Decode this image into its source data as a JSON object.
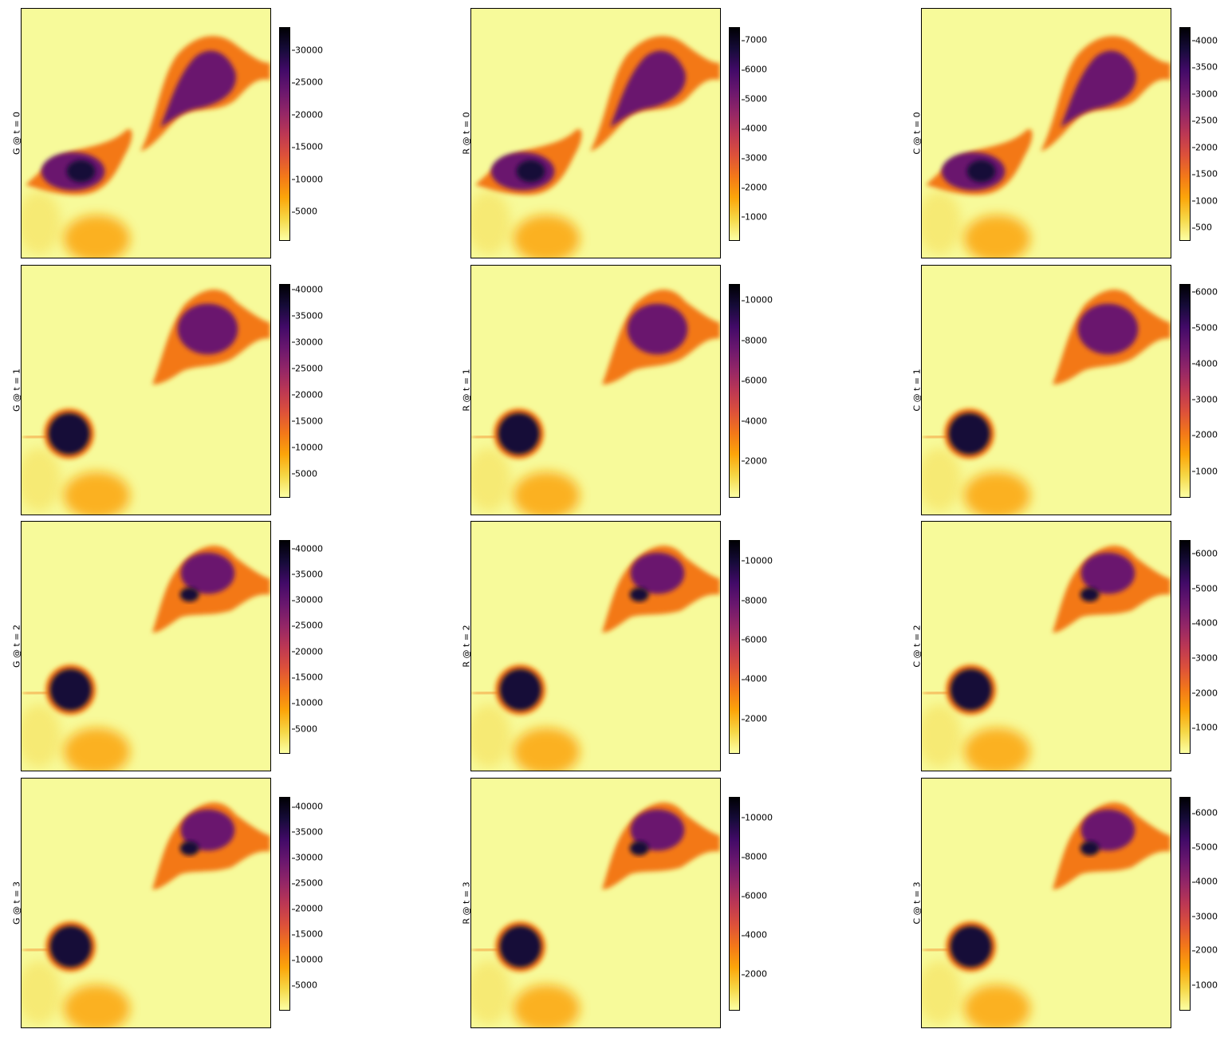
{
  "colormap": [
    "#fcffa4",
    "#f6d746",
    "#fca50a",
    "#f37819",
    "#dd513a",
    "#bc3754",
    "#932667",
    "#6a176e",
    "#420a68",
    "#160b39",
    "#000004"
  ],
  "panels": [
    {
      "row": 0,
      "col": 0,
      "label": "G @ t = 0",
      "ticks": [
        "30000",
        "25000",
        "20000",
        "15000",
        "10000",
        "5000"
      ],
      "tick_fracs": [
        0.107,
        0.258,
        0.41,
        0.561,
        0.712,
        0.863
      ],
      "scale": 1.0
    },
    {
      "row": 0,
      "col": 1,
      "label": "R @ t = 0",
      "ticks": [
        "7000",
        "6000",
        "5000",
        "4000",
        "3000",
        "2000",
        "1000"
      ],
      "tick_fracs": [
        0.06,
        0.198,
        0.336,
        0.474,
        0.612,
        0.75,
        0.888
      ],
      "scale": 0.95
    },
    {
      "row": 0,
      "col": 2,
      "label": "C @ t = 0",
      "ticks": [
        "4000",
        "3500",
        "3000",
        "2500",
        "2000",
        "1500",
        "1000",
        "500"
      ],
      "tick_fracs": [
        0.063,
        0.188,
        0.313,
        0.438,
        0.563,
        0.687,
        0.812,
        0.937
      ],
      "scale": 0.9
    },
    {
      "row": 1,
      "col": 0,
      "label": "G @ t = 1",
      "ticks": [
        "40000",
        "35000",
        "30000",
        "25000",
        "20000",
        "15000",
        "10000",
        "5000"
      ],
      "tick_fracs": [
        0.026,
        0.149,
        0.272,
        0.395,
        0.518,
        0.641,
        0.764,
        0.888
      ],
      "scale": 1.0
    },
    {
      "row": 1,
      "col": 1,
      "label": "R @ t = 1",
      "ticks": [
        "10000",
        "8000",
        "6000",
        "4000",
        "2000"
      ],
      "tick_fracs": [
        0.075,
        0.264,
        0.452,
        0.64,
        0.828
      ],
      "scale": 0.85
    },
    {
      "row": 1,
      "col": 2,
      "label": "C @ t = 1",
      "ticks": [
        "6000",
        "5000",
        "4000",
        "3000",
        "2000",
        "1000"
      ],
      "tick_fracs": [
        0.037,
        0.205,
        0.372,
        0.54,
        0.707,
        0.875
      ],
      "scale": 0.9
    },
    {
      "row": 2,
      "col": 0,
      "label": "G @ t = 2",
      "ticks": [
        "40000",
        "35000",
        "30000",
        "25000",
        "20000",
        "15000",
        "10000",
        "5000"
      ],
      "tick_fracs": [
        0.04,
        0.16,
        0.281,
        0.401,
        0.522,
        0.642,
        0.763,
        0.884
      ],
      "scale": 1.0
    },
    {
      "row": 2,
      "col": 1,
      "label": "R @ t = 2",
      "ticks": [
        "10000",
        "8000",
        "6000",
        "4000",
        "2000"
      ],
      "tick_fracs": [
        0.097,
        0.282,
        0.466,
        0.651,
        0.836
      ],
      "scale": 0.85
    },
    {
      "row": 2,
      "col": 2,
      "label": "C @ t = 2",
      "ticks": [
        "6000",
        "5000",
        "4000",
        "3000",
        "2000",
        "1000"
      ],
      "tick_fracs": [
        0.063,
        0.226,
        0.389,
        0.552,
        0.715,
        0.878
      ],
      "scale": 0.9
    },
    {
      "row": 3,
      "col": 0,
      "label": "G @ t = 3",
      "ticks": [
        "40000",
        "35000",
        "30000",
        "25000",
        "20000",
        "15000",
        "10000",
        "5000"
      ],
      "tick_fracs": [
        0.045,
        0.164,
        0.284,
        0.403,
        0.523,
        0.643,
        0.762,
        0.882
      ],
      "scale": 1.0
    },
    {
      "row": 3,
      "col": 1,
      "label": "R @ t = 3",
      "ticks": [
        "10000",
        "8000",
        "6000",
        "4000",
        "2000"
      ],
      "tick_fracs": [
        0.097,
        0.28,
        0.463,
        0.646,
        0.829
      ],
      "scale": 0.85
    },
    {
      "row": 3,
      "col": 2,
      "label": "C @ t = 3",
      "ticks": [
        "6000",
        "5000",
        "4000",
        "3000",
        "2000",
        "1000"
      ],
      "tick_fracs": [
        0.075,
        0.236,
        0.397,
        0.558,
        0.718,
        0.879
      ],
      "scale": 0.9
    }
  ]
}
